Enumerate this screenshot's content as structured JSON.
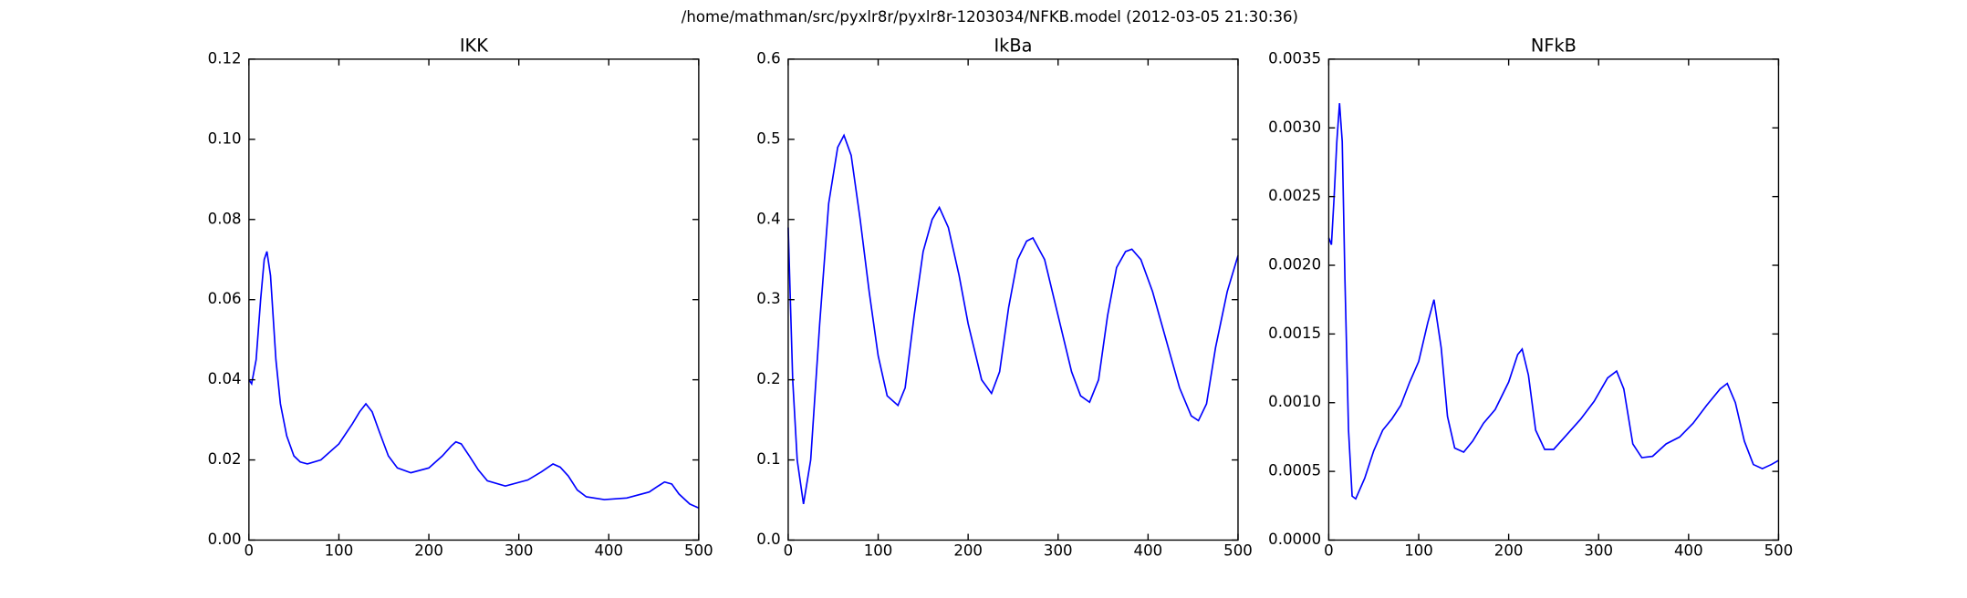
{
  "title": "/home/mathman/src/pyxlr8r/pyxlr8r-1203034/NFKB.model (2012-03-05 21:30:36)",
  "chart_data": [
    {
      "type": "line",
      "title": "IKK",
      "xlim": [
        0,
        500
      ],
      "xticks": [
        0,
        100,
        200,
        300,
        400,
        500
      ],
      "ylim": [
        0,
        0.12
      ],
      "yticks": [
        {
          "value": 0,
          "label": "0.00"
        },
        {
          "value": 0.02,
          "label": "0.02"
        },
        {
          "value": 0.04,
          "label": "0.04"
        },
        {
          "value": 0.06,
          "label": "0.06"
        },
        {
          "value": 0.08,
          "label": "0.08"
        },
        {
          "value": 0.1,
          "label": "0.10"
        },
        {
          "value": 0.12,
          "label": "0.12"
        }
      ],
      "x": [
        0,
        3,
        8,
        13,
        17,
        20,
        24,
        30,
        35,
        42,
        50,
        57,
        65,
        80,
        100,
        115,
        123,
        130,
        137,
        145,
        155,
        165,
        180,
        200,
        215,
        225,
        230,
        236,
        245,
        255,
        265,
        285,
        310,
        325,
        338,
        346,
        355,
        365,
        375,
        395,
        420,
        445,
        455,
        462,
        470,
        478,
        490,
        500
      ],
      "series": [
        {
          "color": "#0000ff",
          "values": [
            0.04,
            0.039,
            0.045,
            0.06,
            0.07,
            0.072,
            0.066,
            0.045,
            0.034,
            0.026,
            0.021,
            0.0195,
            0.019,
            0.02,
            0.024,
            0.029,
            0.032,
            0.034,
            0.032,
            0.027,
            0.021,
            0.018,
            0.0168,
            0.018,
            0.021,
            0.0235,
            0.0245,
            0.024,
            0.021,
            0.0175,
            0.0148,
            0.0135,
            0.015,
            0.017,
            0.019,
            0.0182,
            0.016,
            0.0125,
            0.0108,
            0.0101,
            0.0105,
            0.012,
            0.0135,
            0.0145,
            0.014,
            0.0115,
            0.009,
            0.008
          ]
        }
      ]
    },
    {
      "type": "line",
      "title": "IkBa",
      "xlim": [
        0,
        500
      ],
      "xticks": [
        0,
        100,
        200,
        300,
        400,
        500
      ],
      "ylim": [
        0,
        0.6
      ],
      "yticks": [
        {
          "value": 0,
          "label": "0.0"
        },
        {
          "value": 0.1,
          "label": "0.1"
        },
        {
          "value": 0.2,
          "label": "0.2"
        },
        {
          "value": 0.3,
          "label": "0.3"
        },
        {
          "value": 0.4,
          "label": "0.4"
        },
        {
          "value": 0.5,
          "label": "0.5"
        },
        {
          "value": 0.6,
          "label": "0.6"
        }
      ],
      "x": [
        0,
        5,
        10,
        17,
        25,
        35,
        45,
        55,
        62,
        70,
        80,
        90,
        100,
        110,
        122,
        130,
        140,
        150,
        160,
        168,
        178,
        190,
        200,
        215,
        226,
        235,
        245,
        255,
        265,
        272,
        285,
        300,
        315,
        325,
        335,
        345,
        355,
        365,
        375,
        382,
        392,
        405,
        420,
        435,
        448,
        456,
        465,
        475,
        488,
        500
      ],
      "series": [
        {
          "color": "#0000ff",
          "values": [
            0.39,
            0.2,
            0.1,
            0.045,
            0.1,
            0.27,
            0.42,
            0.49,
            0.505,
            0.48,
            0.4,
            0.31,
            0.23,
            0.18,
            0.168,
            0.19,
            0.28,
            0.36,
            0.4,
            0.415,
            0.39,
            0.33,
            0.27,
            0.2,
            0.183,
            0.21,
            0.29,
            0.35,
            0.373,
            0.377,
            0.35,
            0.28,
            0.21,
            0.18,
            0.172,
            0.2,
            0.28,
            0.34,
            0.36,
            0.363,
            0.35,
            0.31,
            0.25,
            0.19,
            0.155,
            0.149,
            0.17,
            0.24,
            0.31,
            0.355
          ]
        }
      ]
    },
    {
      "type": "line",
      "title": "NFkB",
      "xlim": [
        0,
        500
      ],
      "xticks": [
        0,
        100,
        200,
        300,
        400,
        500
      ],
      "ylim": [
        0,
        0.0035
      ],
      "yticks": [
        {
          "value": 0,
          "label": "0.0000"
        },
        {
          "value": 0.0005,
          "label": "0.0005"
        },
        {
          "value": 0.001,
          "label": "0.0010"
        },
        {
          "value": 0.0015,
          "label": "0.0015"
        },
        {
          "value": 0.002,
          "label": "0.0020"
        },
        {
          "value": 0.0025,
          "label": "0.0025"
        },
        {
          "value": 0.003,
          "label": "0.0030"
        },
        {
          "value": 0.0035,
          "label": "0.0035"
        }
      ],
      "x": [
        0,
        3,
        6,
        9,
        12,
        15,
        18,
        22,
        26,
        30,
        40,
        50,
        60,
        70,
        80,
        90,
        100,
        110,
        117,
        125,
        132,
        140,
        150,
        160,
        172,
        185,
        200,
        210,
        215,
        222,
        230,
        240,
        250,
        265,
        280,
        295,
        310,
        320,
        328,
        338,
        348,
        360,
        375,
        390,
        405,
        420,
        435,
        443,
        452,
        462,
        472,
        482,
        492,
        500
      ],
      "series": [
        {
          "color": "#0000ff",
          "values": [
            0.0022,
            0.00215,
            0.0025,
            0.0029,
            0.00318,
            0.0029,
            0.0019,
            0.0008,
            0.00032,
            0.0003,
            0.00045,
            0.00065,
            0.0008,
            0.00088,
            0.00098,
            0.00115,
            0.0013,
            0.00158,
            0.00175,
            0.0014,
            0.0009,
            0.00067,
            0.00064,
            0.00072,
            0.00085,
            0.00095,
            0.00115,
            0.00135,
            0.00139,
            0.0012,
            0.0008,
            0.00066,
            0.00066,
            0.00077,
            0.00088,
            0.00101,
            0.00118,
            0.00123,
            0.0011,
            0.0007,
            0.0006,
            0.00061,
            0.0007,
            0.00075,
            0.00085,
            0.00098,
            0.0011,
            0.00114,
            0.001,
            0.00072,
            0.00055,
            0.00052,
            0.00055,
            0.00058
          ]
        }
      ]
    }
  ]
}
